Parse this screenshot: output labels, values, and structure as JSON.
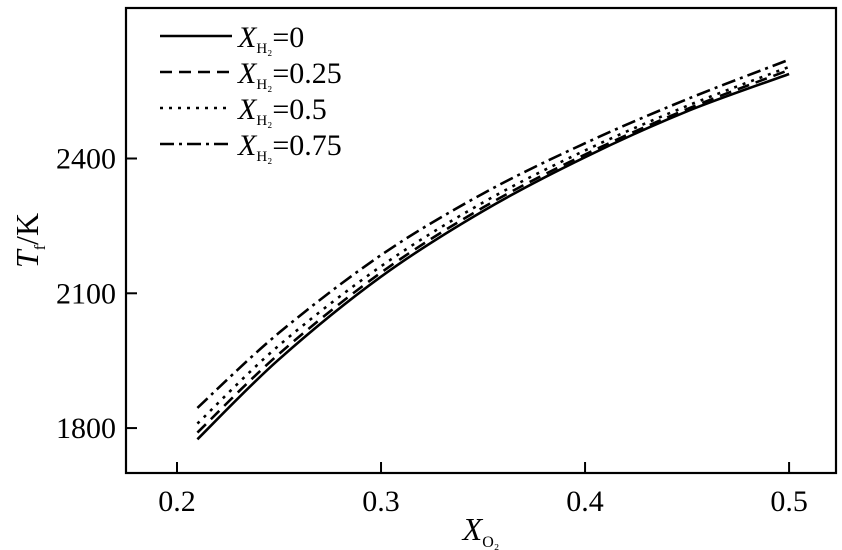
{
  "chart_data": {
    "type": "line",
    "xlabel": "X",
    "xlabel_subscript": "O₂",
    "ylabel": "T",
    "ylabel_subscript": "f",
    "ylabel_unit": "/K",
    "xlim": [
      0.175,
      0.523
    ],
    "ylim": [
      1700,
      2735
    ],
    "xticks": [
      0.2,
      0.3,
      0.4,
      0.5
    ],
    "xtick_labels": [
      "0.2",
      "0.3",
      "0.4",
      "0.5"
    ],
    "yticks": [
      1800,
      2100,
      2400
    ],
    "ytick_labels": [
      "1800",
      "2100",
      "2400"
    ],
    "grid": false,
    "legend_position": "top-left",
    "x": [
      0.21,
      0.25,
      0.3,
      0.35,
      0.4,
      0.45,
      0.5
    ],
    "series": [
      {
        "name": "X",
        "name_subscript": "H₂",
        "name_suffix": "=0",
        "dash": "solid",
        "values": [
          1775,
          1953,
          2137,
          2283,
          2403,
          2505,
          2588
        ]
      },
      {
        "name": "X",
        "name_subscript": "H₂",
        "name_suffix": "=0.25",
        "dash": "dashed",
        "values": [
          1790,
          1965,
          2146,
          2291,
          2409,
          2510,
          2597
        ]
      },
      {
        "name": "X",
        "name_subscript": "H₂",
        "name_suffix": "=0.5",
        "dash": "dotted",
        "values": [
          1810,
          1984,
          2160,
          2302,
          2418,
          2517,
          2604
        ]
      },
      {
        "name": "X",
        "name_subscript": "H₂",
        "name_suffix": "=0.75",
        "dash": "dashdot",
        "values": [
          1845,
          2012,
          2185,
          2322,
          2434,
          2532,
          2620
        ]
      }
    ]
  }
}
